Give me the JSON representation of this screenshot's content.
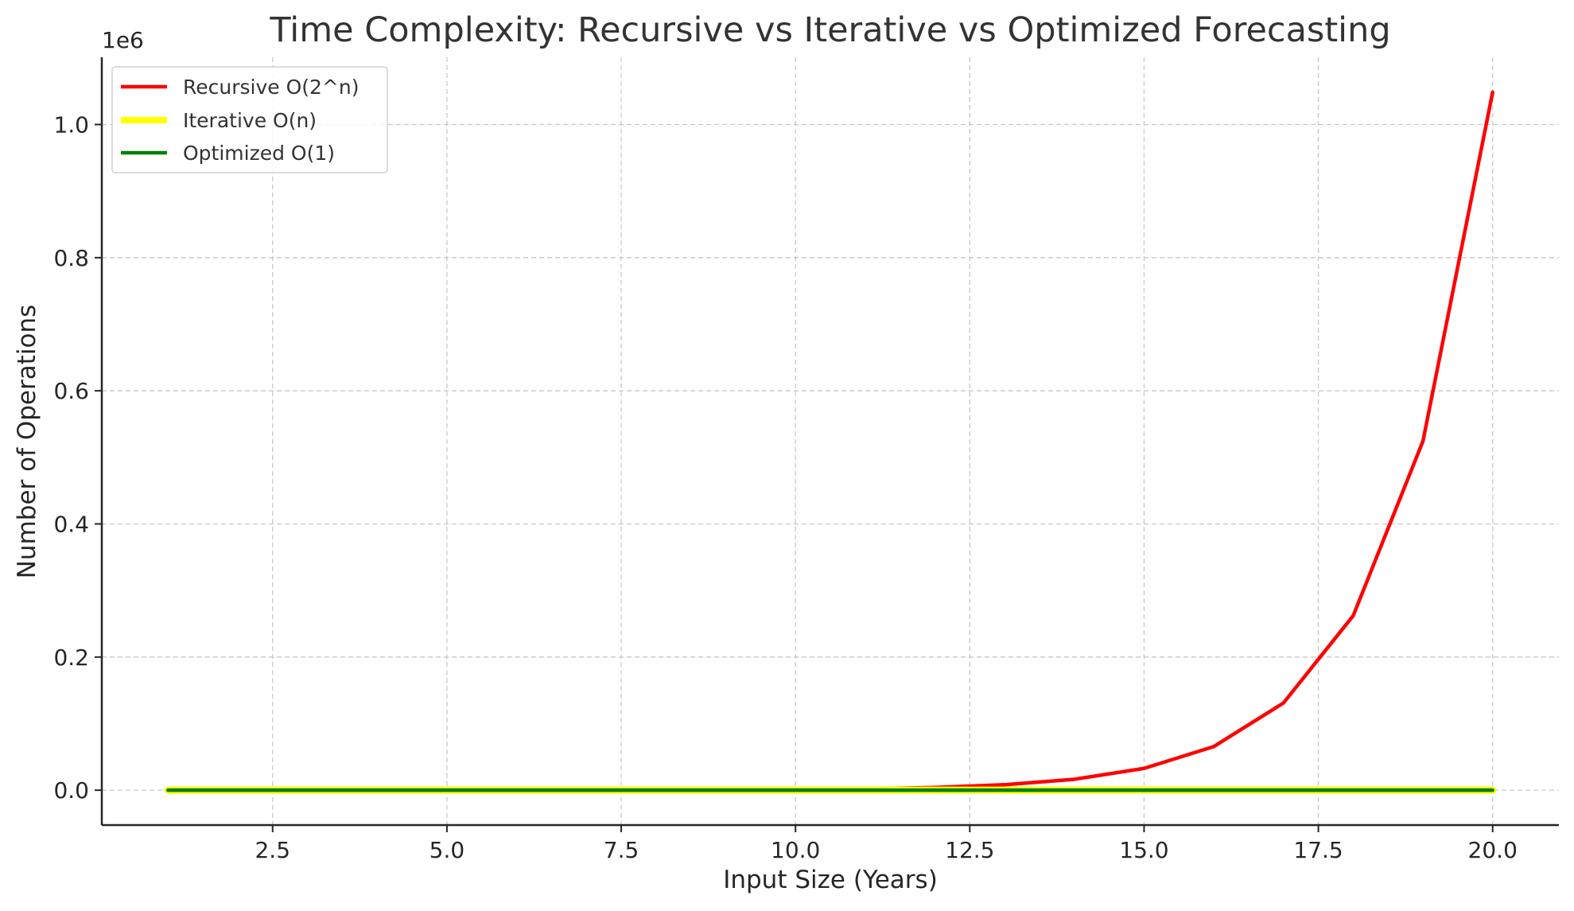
{
  "chart_data": {
    "type": "line",
    "title": "Time Complexity: Recursive vs Iterative vs Optimized Forecasting",
    "xlabel": "Input Size (Years)",
    "ylabel": "Number of Operations",
    "y_offset_label": "1e6",
    "xlim": [
      0.05,
      20.95
    ],
    "ylim": [
      -0.0524,
      1.101
    ],
    "x_ticks": [
      2.5,
      5.0,
      7.5,
      10.0,
      12.5,
      15.0,
      17.5,
      20.0
    ],
    "x_tick_labels": [
      "2.5",
      "5.0",
      "7.5",
      "10.0",
      "12.5",
      "15.0",
      "17.5",
      "20.0"
    ],
    "y_ticks": [
      0.0,
      0.2,
      0.4,
      0.6,
      0.8,
      1.0
    ],
    "y_tick_labels": [
      "0.0",
      "0.2",
      "0.4",
      "0.6",
      "0.8",
      "1.0"
    ],
    "y_scale": 1000000,
    "grid": true,
    "legend_position": "top-left",
    "x": [
      1,
      2,
      3,
      4,
      5,
      6,
      7,
      8,
      9,
      10,
      11,
      12,
      13,
      14,
      15,
      16,
      17,
      18,
      19,
      20
    ],
    "series": [
      {
        "name": "Recursive O(2^n)",
        "color": "#ff0000",
        "values": [
          2,
          4,
          8,
          16,
          32,
          64,
          128,
          256,
          512,
          1024,
          2048,
          4096,
          8192,
          16384,
          32768,
          65536,
          131072,
          262144,
          524288,
          1048576
        ]
      },
      {
        "name": "Iterative O(n)",
        "color": "#ffff00",
        "values": [
          1,
          2,
          3,
          4,
          5,
          6,
          7,
          8,
          9,
          10,
          11,
          12,
          13,
          14,
          15,
          16,
          17,
          18,
          19,
          20
        ]
      },
      {
        "name": "Optimized O(1)",
        "color": "#008000",
        "values": [
          1,
          1,
          1,
          1,
          1,
          1,
          1,
          1,
          1,
          1,
          1,
          1,
          1,
          1,
          1,
          1,
          1,
          1,
          1,
          1
        ]
      }
    ]
  }
}
